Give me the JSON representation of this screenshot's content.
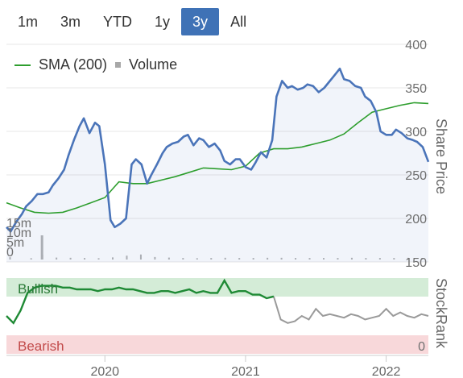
{
  "range_tabs": [
    {
      "label": "1m",
      "active": false
    },
    {
      "label": "3m",
      "active": false
    },
    {
      "label": "YTD",
      "active": false
    },
    {
      "label": "1y",
      "active": false
    },
    {
      "label": "3y",
      "active": true
    },
    {
      "label": "All",
      "active": false
    }
  ],
  "legend": {
    "sma_label": "SMA (200)",
    "volume_label": "Volume"
  },
  "colors": {
    "price": "#4a74b9",
    "sma": "#2e9e2e",
    "volume": "#b3b3b3",
    "bullish_band": "#d4ecd7",
    "bearish_band": "#f8d8da",
    "stockrank_line": "#9a9a9a",
    "stockrank_bullish_line": "#1f8a35",
    "grid": "#e7e7e7"
  },
  "chart_data": {
    "type": "line",
    "price_axis": {
      "label": "Share Price",
      "ylim": [
        150,
        400
      ],
      "ticks": [
        150,
        200,
        250,
        300,
        350,
        400
      ]
    },
    "volume_axis": {
      "ticks": [
        0,
        5,
        10,
        15
      ],
      "tick_labels": [
        "0",
        "5m",
        "10m",
        "15m"
      ],
      "ylim": [
        0,
        35
      ]
    },
    "stockrank_axis": {
      "label": "StockRank",
      "zero_label": "0",
      "bullish_label": "Bullish",
      "bearish_label": "Bearish"
    },
    "x_axis": {
      "range": [
        2019.3,
        2022.3
      ],
      "ticks": [
        2020,
        2021,
        2022
      ],
      "tick_labels": [
        "2020",
        "2021",
        "2022"
      ]
    },
    "series": [
      {
        "name": "Share Price",
        "x": [
          2019.3,
          2019.33,
          2019.37,
          2019.41,
          2019.44,
          2019.48,
          2019.52,
          2019.56,
          2019.6,
          2019.63,
          2019.67,
          2019.71,
          2019.74,
          2019.78,
          2019.82,
          2019.85,
          2019.89,
          2019.93,
          2019.96,
          2020.0,
          2020.04,
          2020.07,
          2020.11,
          2020.15,
          2020.19,
          2020.22,
          2020.26,
          2020.3,
          2020.33,
          2020.37,
          2020.41,
          2020.44,
          2020.48,
          2020.52,
          2020.56,
          2020.59,
          2020.63,
          2020.67,
          2020.7,
          2020.74,
          2020.78,
          2020.82,
          2020.85,
          2020.89,
          2020.93,
          2020.96,
          2021.0,
          2021.04,
          2021.07,
          2021.11,
          2021.15,
          2021.19,
          2021.22,
          2021.26,
          2021.3,
          2021.33,
          2021.37,
          2021.41,
          2021.44,
          2021.48,
          2021.52,
          2021.56,
          2021.59,
          2021.63,
          2021.67,
          2021.7,
          2021.74,
          2021.78,
          2021.82,
          2021.85,
          2021.89,
          2021.93,
          2021.96,
          2022.0,
          2022.04,
          2022.07,
          2022.11,
          2022.15,
          2022.19,
          2022.22,
          2022.26,
          2022.3
        ],
        "values": [
          190,
          185,
          196,
          205,
          214,
          220,
          228,
          228,
          230,
          238,
          246,
          256,
          272,
          290,
          306,
          315,
          298,
          310,
          306,
          262,
          198,
          190,
          194,
          200,
          262,
          268,
          262,
          240,
          250,
          262,
          275,
          282,
          286,
          288,
          294,
          296,
          284,
          292,
          290,
          282,
          286,
          278,
          266,
          262,
          268,
          268,
          259,
          256,
          264,
          276,
          270,
          290,
          340,
          358,
          350,
          352,
          348,
          350,
          354,
          352,
          345,
          350,
          356,
          364,
          372,
          360,
          358,
          352,
          350,
          340,
          335,
          322,
          300,
          296,
          296,
          302,
          298,
          292,
          290,
          288,
          282,
          265
        ],
        "source": "estimated"
      },
      {
        "name": "SMA (200)",
        "x": [
          2019.3,
          2019.4,
          2019.5,
          2019.6,
          2019.7,
          2019.8,
          2019.9,
          2020.0,
          2020.1,
          2020.2,
          2020.3,
          2020.4,
          2020.5,
          2020.6,
          2020.7,
          2020.8,
          2020.9,
          2021.0,
          2021.1,
          2021.2,
          2021.3,
          2021.4,
          2021.5,
          2021.6,
          2021.7,
          2021.8,
          2021.9,
          2022.0,
          2022.1,
          2022.2,
          2022.3
        ],
        "values": [
          218,
          212,
          207,
          206,
          207,
          212,
          218,
          224,
          242,
          240,
          240,
          244,
          248,
          253,
          258,
          257,
          256,
          260,
          275,
          280,
          280,
          282,
          286,
          290,
          297,
          310,
          322,
          326,
          330,
          333,
          332
        ]
      },
      {
        "name": "Volume",
        "x": [
          2019.32,
          2019.47,
          2019.55,
          2019.65,
          2019.75,
          2019.85,
          2019.95,
          2020.05,
          2020.15,
          2020.25,
          2020.35,
          2020.45,
          2020.55,
          2020.65,
          2020.75,
          2020.85,
          2020.95,
          2021.05,
          2021.15,
          2021.25,
          2021.35,
          2021.45,
          2021.55,
          2021.65,
          2021.75,
          2021.85,
          2021.95,
          2022.05,
          2022.15,
          2022.25
        ],
        "values": [
          1.2,
          0.7,
          2.4,
          1.0,
          0.9,
          0.8,
          0.7,
          1.1,
          2.0,
          2.6,
          1.3,
          1.0,
          0.8,
          0.7,
          0.8,
          0.9,
          0.8,
          0.8,
          0.9,
          0.9,
          0.8,
          0.8,
          0.8,
          0.8,
          0.9,
          0.8,
          0.8,
          0.8,
          0.9,
          0.8
        ],
        "spike": {
          "x": 2019.55,
          "value": 12.5
        }
      },
      {
        "name": "StockRank",
        "x": [
          2019.3,
          2019.35,
          2019.4,
          2019.45,
          2019.5,
          2019.55,
          2019.6,
          2019.65,
          2019.7,
          2019.75,
          2019.8,
          2019.85,
          2019.9,
          2019.95,
          2020.0,
          2020.05,
          2020.1,
          2020.15,
          2020.2,
          2020.25,
          2020.3,
          2020.35,
          2020.4,
          2020.45,
          2020.5,
          2020.55,
          2020.6,
          2020.65,
          2020.7,
          2020.75,
          2020.8,
          2020.85,
          2020.9,
          2020.95,
          2021.0,
          2021.05,
          2021.1,
          2021.15,
          2021.2,
          2021.25,
          2021.3,
          2021.35,
          2021.4,
          2021.45,
          2021.5,
          2021.55,
          2021.6,
          2021.65,
          2021.7,
          2021.75,
          2021.8,
          2021.85,
          2021.9,
          2021.95,
          2022.0,
          2022.05,
          2022.1,
          2022.15,
          2022.2,
          2022.25,
          2022.3
        ],
        "values": [
          80,
          76,
          83,
          93,
          96,
          97,
          97,
          97,
          96,
          96,
          95,
          95,
          95,
          94,
          95,
          95,
          96,
          95,
          95,
          94,
          93,
          93,
          94,
          94,
          93,
          94,
          95,
          93,
          94,
          93,
          93,
          100,
          93,
          94,
          94,
          92,
          92,
          90,
          91,
          78,
          76,
          77,
          80,
          78,
          84,
          80,
          81,
          80,
          79,
          81,
          80,
          78,
          79,
          80,
          84,
          80,
          82,
          80,
          79,
          81,
          80
        ],
        "bullish_until": 2021.2
      }
    ]
  }
}
